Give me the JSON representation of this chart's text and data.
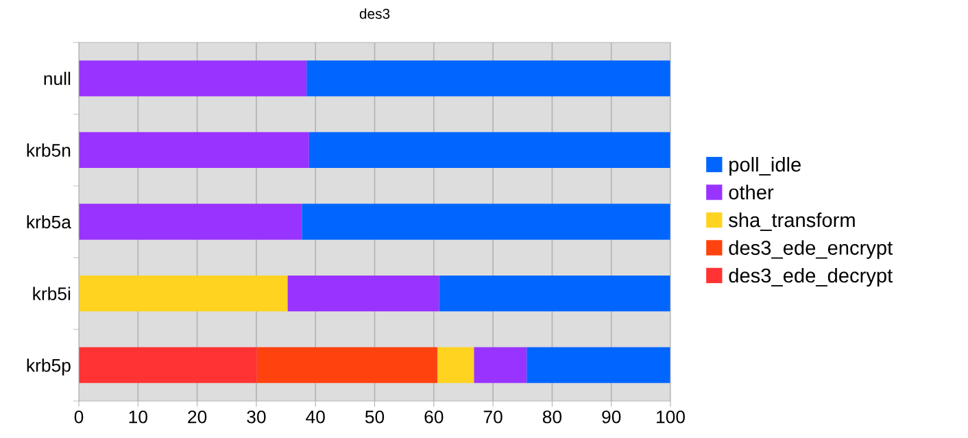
{
  "chart_data": {
    "type": "bar",
    "orientation": "horizontal",
    "stacked": true,
    "title": "des3",
    "categories": [
      "null",
      "krb5n",
      "krb5a",
      "krb5i",
      "krb5p"
    ],
    "series": [
      {
        "name": "des3_ede_decrypt",
        "color": "#ff3333",
        "values": [
          0,
          0,
          0,
          0,
          30.1
        ]
      },
      {
        "name": "des3_ede_encrypt",
        "color": "#ff420e",
        "values": [
          0,
          0,
          0,
          0,
          30.5
        ]
      },
      {
        "name": "sha_transform",
        "color": "#ffd320",
        "values": [
          0,
          0,
          0,
          35.3,
          6.2
        ]
      },
      {
        "name": "other",
        "color": "#9933ff",
        "values": [
          38.5,
          38.9,
          37.7,
          25.6,
          8.9
        ]
      },
      {
        "name": "poll_idle",
        "color": "#0066ff",
        "values": [
          61.5,
          61.1,
          62.3,
          39.1,
          24.3
        ]
      }
    ],
    "xlim": [
      0,
      100
    ],
    "xticks": [
      0,
      10,
      20,
      30,
      40,
      50,
      60,
      70,
      80,
      90,
      100
    ],
    "grid": "x",
    "legend": "right"
  }
}
